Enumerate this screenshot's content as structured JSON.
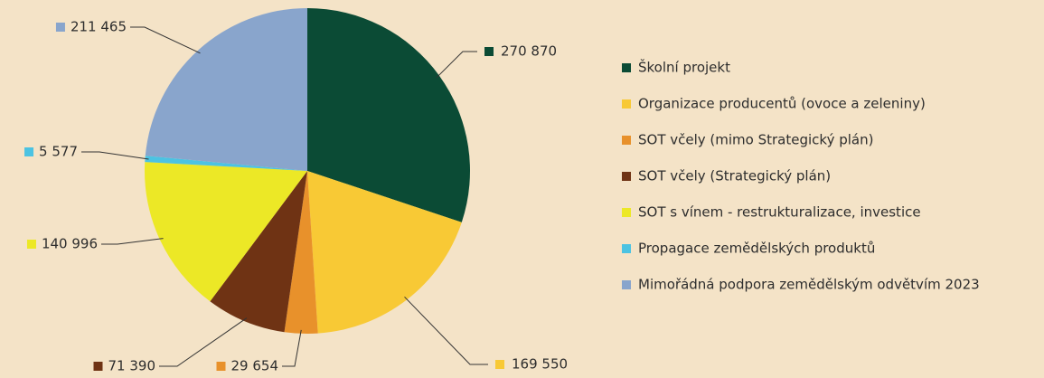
{
  "chart_data": {
    "type": "pie",
    "categories": [
      "Školní projekt",
      "Organizace producentů (ovoce a zeleniny)",
      "SOT včely (mimo Strategický plán)",
      "SOT včely (Strategický plán)",
      "SOT s vínem - restrukturalizace, investice",
      "Propagace zemědělských produktů",
      "Mimořádná podpora zemědělským odvětvím 2023"
    ],
    "values": [
      270870,
      169550,
      29654,
      71390,
      140996,
      5577,
      211465
    ],
    "value_labels": [
      "270 870",
      "169 550",
      "29 654",
      "71 390",
      "140 996",
      "5 577",
      "211 465"
    ],
    "colors": [
      "#0b4b35",
      "#f8c935",
      "#e8912b",
      "#6f3314",
      "#ece826",
      "#4cc3e2",
      "#89a5cc"
    ],
    "legend": "right"
  }
}
